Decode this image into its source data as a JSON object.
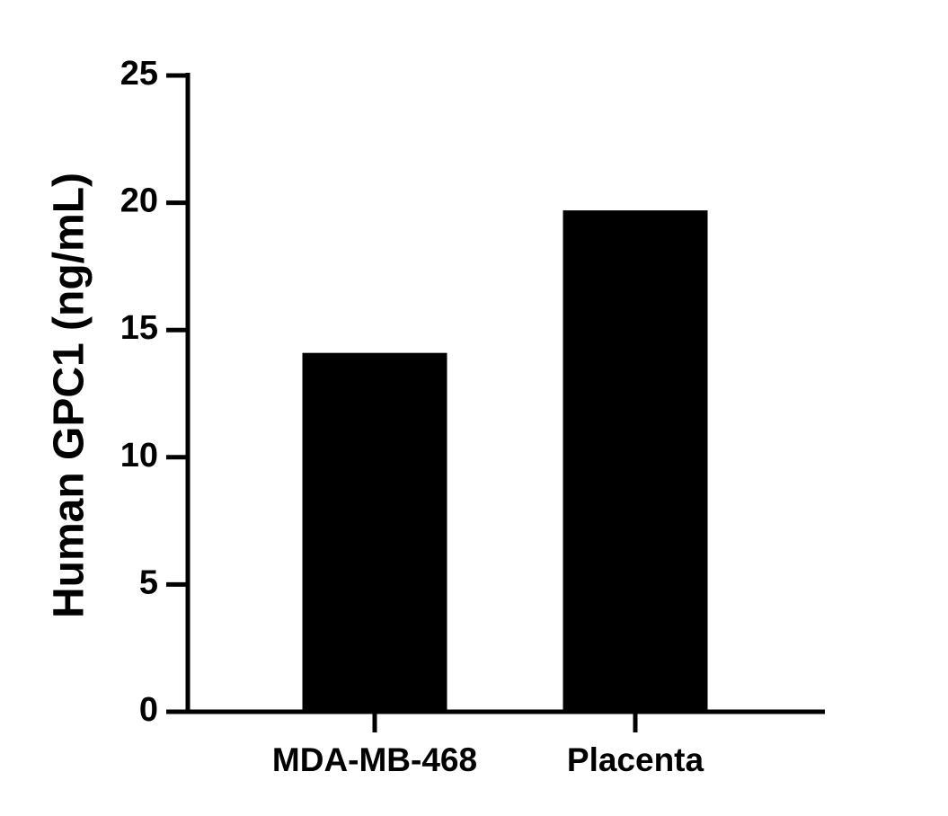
{
  "chart_data": {
    "type": "bar",
    "ylabel": "Human GPC1 (ng/mL)",
    "categories": [
      "MDA-MB-468",
      "Placenta"
    ],
    "values": [
      14.1,
      19.7
    ],
    "color": "#000000",
    "ylim": [
      0,
      25
    ],
    "yticks": [
      0,
      5,
      10,
      15,
      20,
      25
    ],
    "grid": false
  }
}
